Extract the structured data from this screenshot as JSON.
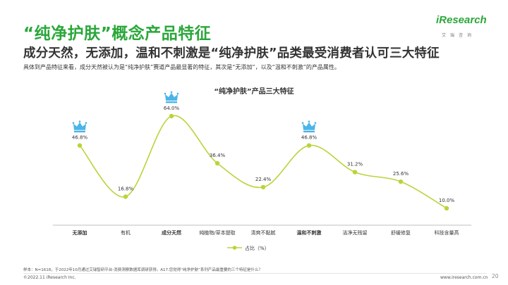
{
  "page": {
    "title": "“纯净护肤”概念产品特征",
    "subtitle": "成分天然，无添加，温和不刺激是“纯净护肤”品类最受消费者认可三大特征",
    "description": "具体到产品特征来看，成分天然被认为是“纯净护肤”赛道产品最显著的特征，其次是“无添加”，以及“温和不刺激”的产品属性。"
  },
  "logo": {
    "text": "iResearch",
    "subtext": "艾瑞咨询"
  },
  "footer": {
    "note": "样本：N=1618，于2022年10月通过艾瑞智研平台-消费洞察数据库调研获得。A17.您觉得“纯净护肤”系列产品最重要的三个特征是什么？",
    "copyright": "©2022.11 iResearch Inc.",
    "website": "www.iresearch.com.cn",
    "page_number": "20"
  },
  "colors": {
    "accent": "#2aa73a",
    "line": "#b9d43a",
    "crown": "#4bb5e8"
  },
  "chart_data": {
    "type": "line",
    "title": "“纯净护肤”产品三大特征",
    "categories": [
      "无添加",
      "有机",
      "成分天然",
      "纯植物/草本提取",
      "清爽不黏腻",
      "温和不刺激",
      "洁净无残留",
      "舒缓修复",
      "科技含量高"
    ],
    "bold_categories": [
      "无添加",
      "成分天然",
      "温和不刺激"
    ],
    "series": [
      {
        "name": "占比（%）",
        "values": [
          46.8,
          16.8,
          64.0,
          36.4,
          22.4,
          46.8,
          31.2,
          25.6,
          10.0
        ],
        "labels": [
          "46.8%",
          "16.8%",
          "64.0%",
          "36.4%",
          "22.4%",
          "46.8%",
          "31.2%",
          "25.6%",
          "10.0%"
        ]
      }
    ],
    "highlighted": [
      "无添加",
      "成分天然",
      "温和不刺激"
    ],
    "highlight_icon": "crown-icon",
    "legend_position": "bottom",
    "grid": false
  }
}
